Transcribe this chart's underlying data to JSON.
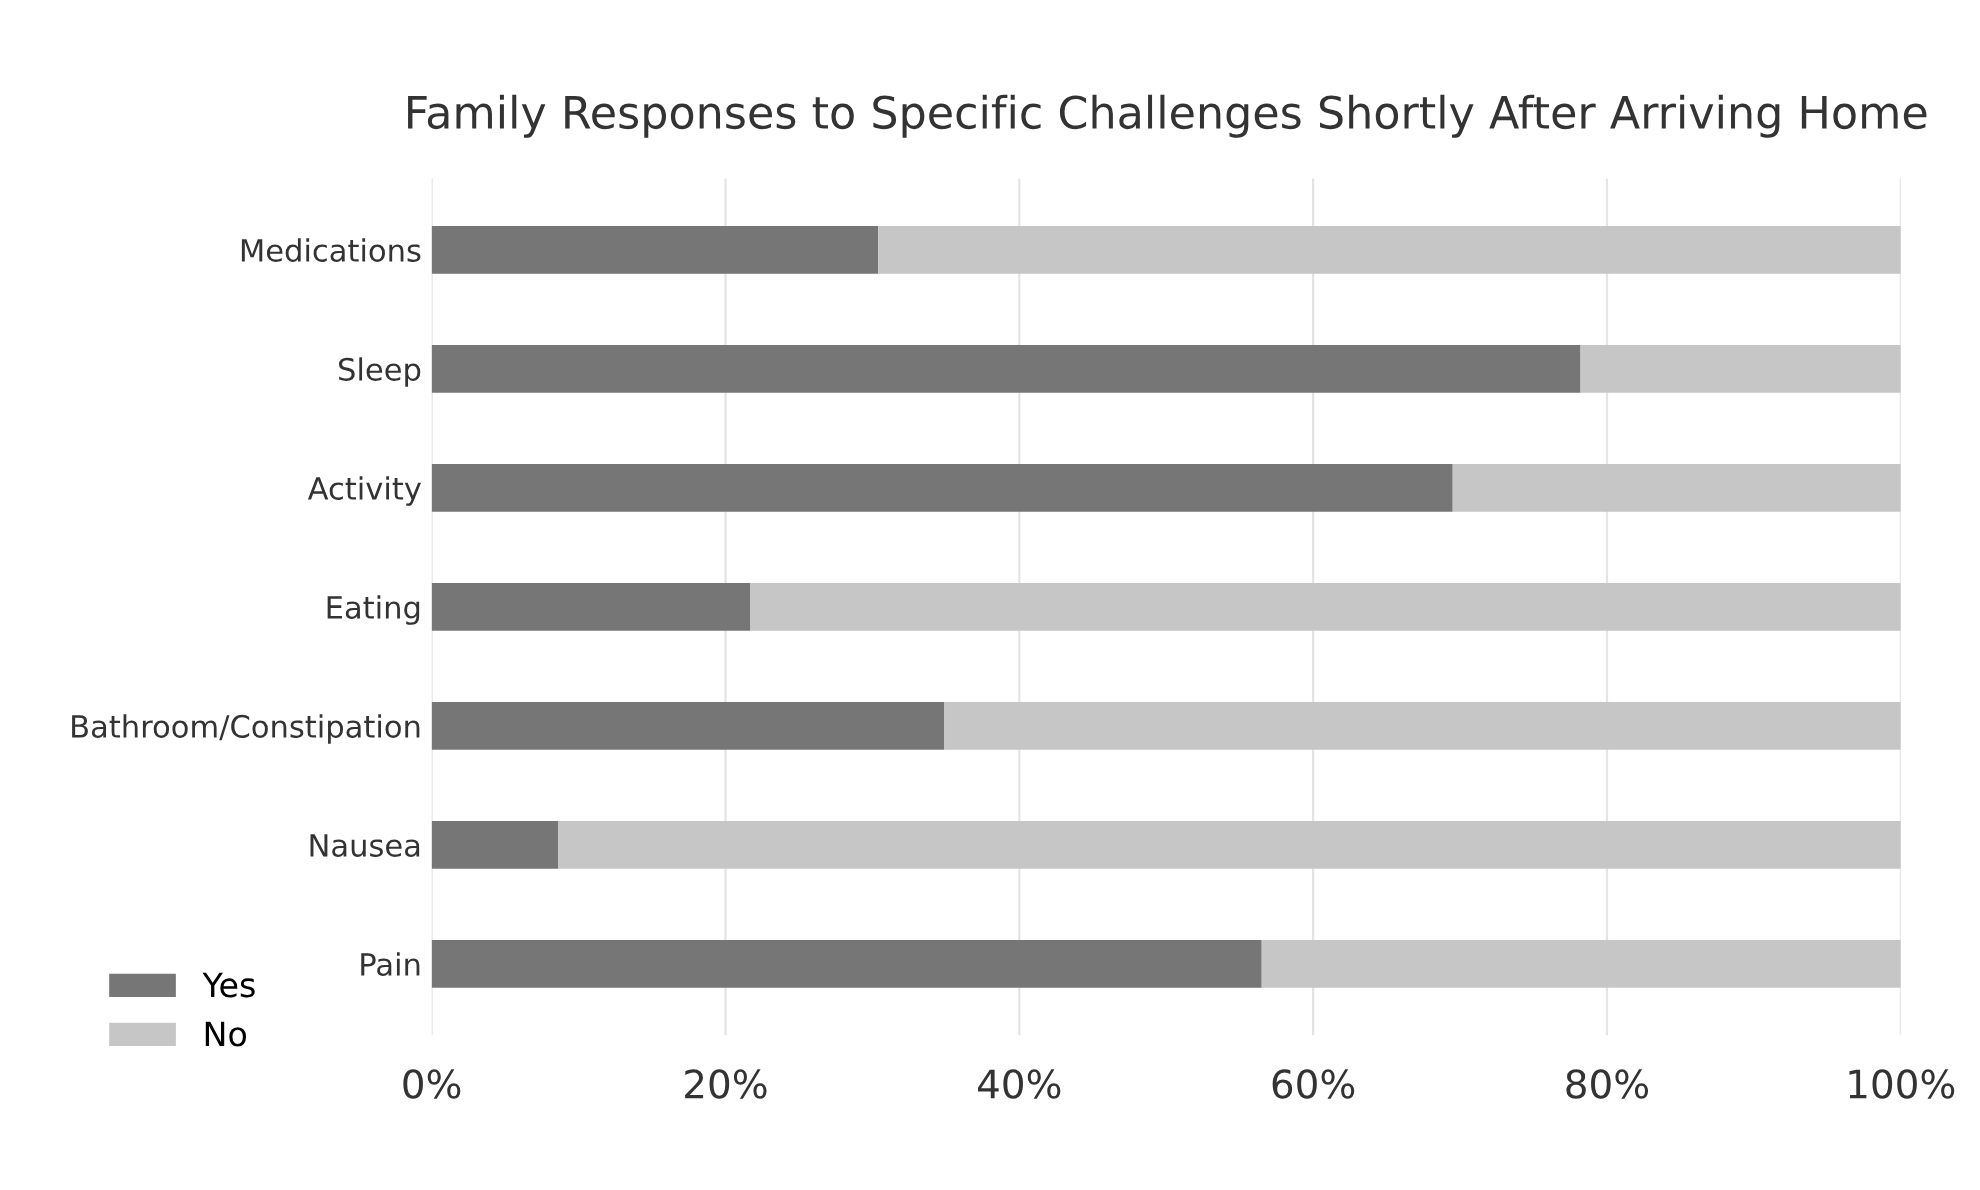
{
  "chart_data": {
    "type": "bar",
    "orientation": "horizontal",
    "stacked": true,
    "title": "Family Responses to Specific Challenges Shortly After Arriving Home",
    "categories": [
      "Medications",
      "Sleep",
      "Activity",
      "Eating",
      "Bathroom/Constipation",
      "Nausea",
      "Pain"
    ],
    "series": [
      {
        "name": "Yes",
        "color": "#767676",
        "values": [
          30.4,
          78.2,
          69.5,
          21.7,
          34.9,
          8.6,
          56.5
        ]
      },
      {
        "name": "No",
        "color": "#c6c6c6",
        "values": [
          69.6,
          21.8,
          30.5,
          78.3,
          65.1,
          91.4,
          43.5
        ]
      }
    ],
    "xlim": [
      0,
      100
    ],
    "xticks": [
      {
        "value": 0,
        "label": "0%"
      },
      {
        "value": 20,
        "label": "20%"
      },
      {
        "value": 40,
        "label": "40%"
      },
      {
        "value": 60,
        "label": "60%"
      },
      {
        "value": 80,
        "label": "80%"
      },
      {
        "value": 100,
        "label": "100%"
      }
    ],
    "grid": "x",
    "legend": "bottom left"
  }
}
